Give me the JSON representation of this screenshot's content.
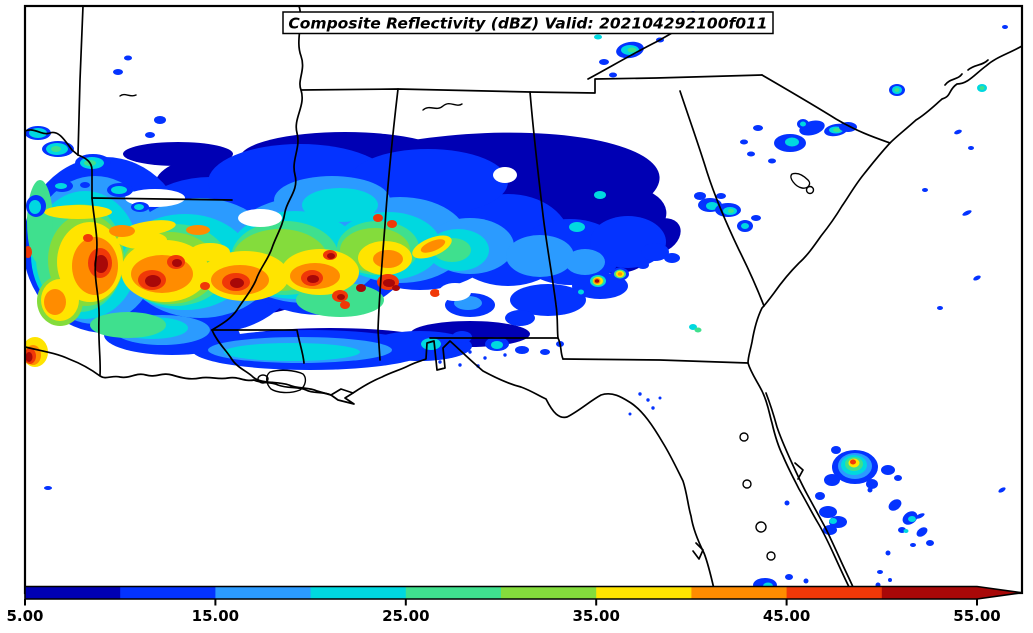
{
  "title": {
    "text": "Composite Reflectivity (dBZ) Valid: 202104292100f011"
  },
  "colorbar": {
    "tick_labels": [
      "5.00",
      "15.00",
      "25.00",
      "35.00",
      "45.00",
      "55.00"
    ],
    "tick_values": [
      5,
      15,
      25,
      35,
      45,
      55
    ],
    "colors": [
      "#0000B4",
      "#0433FF",
      "#2B9BFF",
      "#00D8E0",
      "#3FE08E",
      "#84DC3C",
      "#FFE400",
      "#FF8C00",
      "#F03808",
      "#A80808"
    ],
    "extend": "max"
  },
  "chart_data": {
    "type": "heatmap",
    "title": "Composite Reflectivity (dBZ) Valid: 202104292100f011",
    "quantity": "Composite Reflectivity",
    "units": "dBZ",
    "value_range": [
      5,
      55
    ],
    "levels": [
      5,
      10,
      15,
      20,
      25,
      30,
      35,
      40,
      45,
      50,
      55
    ],
    "level_colors": [
      "#0000B4",
      "#0433FF",
      "#2B9BFF",
      "#00D8E0",
      "#3FE08E",
      "#84DC3C",
      "#FFE400",
      "#FF8C00",
      "#F03808",
      "#A80808"
    ],
    "colorbar_tick_labels": [
      "5.00",
      "15.00",
      "25.00",
      "35.00",
      "45.00",
      "55.00"
    ],
    "legend_position": "bottom",
    "extend": "max"
  }
}
